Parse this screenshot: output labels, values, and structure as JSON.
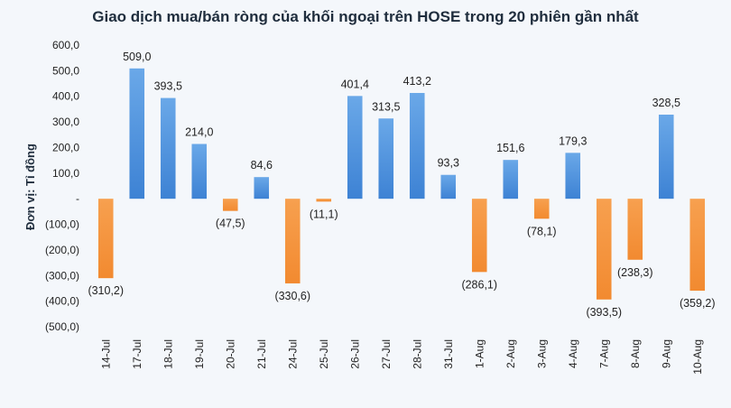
{
  "chart_data": {
    "type": "bar",
    "title": "Giao dịch mua/bán ròng của khối ngoại trên HOSE trong 20 phiên gần nhất",
    "xlabel": "",
    "ylabel": "Đơn vị: Tỉ đồng",
    "ylim": [
      -500,
      600
    ],
    "y_ticks": [
      600,
      500,
      400,
      300,
      200,
      100,
      0,
      -100,
      -200,
      -300,
      -400,
      -500
    ],
    "y_tick_labels": [
      "600,0",
      "500,0",
      "400,0",
      "300,0",
      "200,0",
      "100,0",
      "-",
      "(100,0)",
      "(200,0)",
      "(300,0)",
      "(400,0)",
      "(500,0)"
    ],
    "grid": false,
    "categories": [
      "14-Jul",
      "17-Jul",
      "18-Jul",
      "19-Jul",
      "20-Jul",
      "21-Jul",
      "24-Jul",
      "25-Jul",
      "26-Jul",
      "27-Jul",
      "28-Jul",
      "31-Jul",
      "1-Aug",
      "2-Aug",
      "3-Aug",
      "4-Aug",
      "7-Aug",
      "8-Aug",
      "9-Aug",
      "10-Aug"
    ],
    "values": [
      -310.2,
      509.0,
      393.5,
      214.0,
      -47.5,
      84.6,
      -330.6,
      -11.1,
      401.4,
      313.5,
      413.2,
      93.3,
      -286.1,
      151.6,
      -78.1,
      179.3,
      -393.5,
      -238.3,
      328.5,
      -359.2
    ],
    "data_labels": [
      "(310,2)",
      "509,0",
      "393,5",
      "214,0",
      "(47,5)",
      "84,6",
      "(330,6)",
      "(11,1)",
      "401,4",
      "313,5",
      "413,2",
      "93,3",
      "(286,1)",
      "151,6",
      "(78,1)",
      "179,3",
      "(393,5)",
      "(238,3)",
      "328,5",
      "(359,2)"
    ],
    "colors": {
      "positive": "#4a90d9",
      "negative": "#f5923e"
    }
  }
}
